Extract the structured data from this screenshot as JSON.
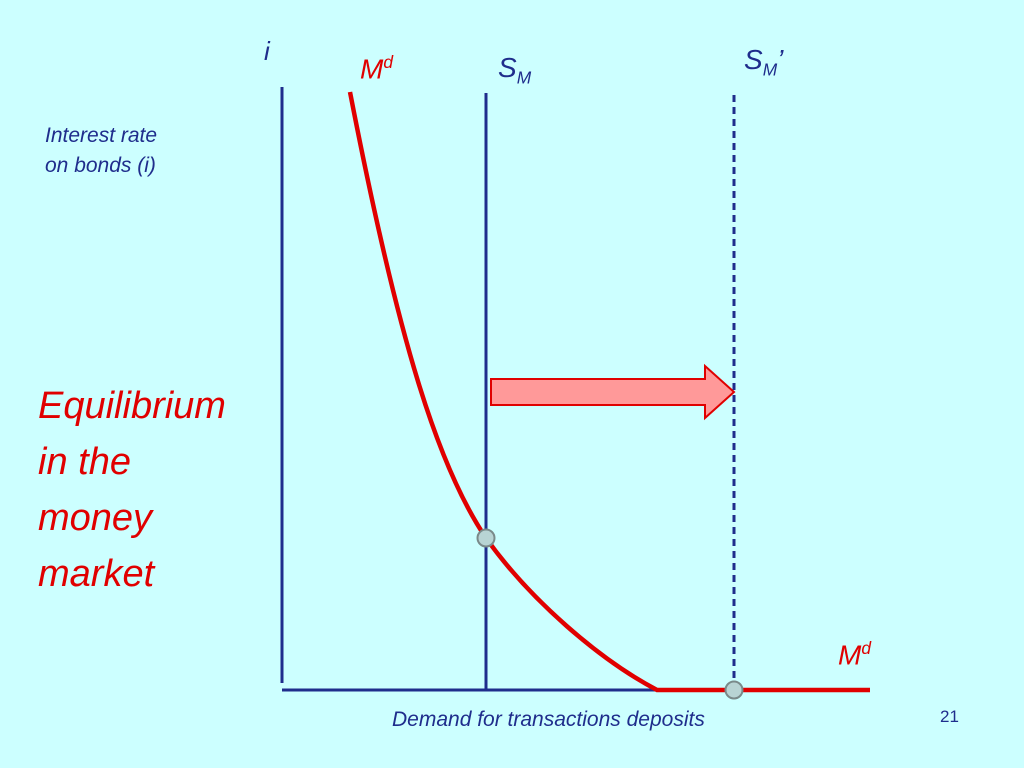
{
  "slide": {
    "heading_lines": [
      "Equilibrium",
      "in the",
      "money",
      "market"
    ],
    "slide_number": "21",
    "background": "#ccffff"
  },
  "diagram": {
    "y_axis_symbol": "i",
    "y_axis_title_lines": [
      "Interest rate",
      "on bonds (i)"
    ],
    "x_axis_title": "Demand for transactions deposits",
    "demand_label_top": {
      "base": "M",
      "sup": "d"
    },
    "demand_label_right": {
      "base": "M",
      "sup": "d"
    },
    "supply_label": {
      "base": "S",
      "sub": "M",
      "suffix": ""
    },
    "supply_shifted_label": {
      "base": "S",
      "sub": "M",
      "suffix": "’"
    },
    "colors": {
      "axis": "#1f2d8c",
      "demand_curve": "#e00000",
      "supply_line": "#1f2d8c",
      "arrow_fill": "#ff9999",
      "arrow_stroke": "#e00000",
      "equilibrium_point": "#b8d4d4"
    },
    "arrow_direction": "right"
  }
}
